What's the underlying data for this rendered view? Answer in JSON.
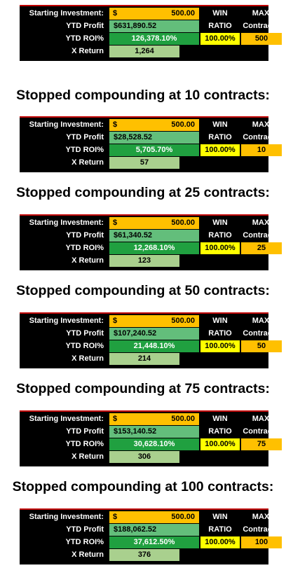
{
  "labels": {
    "starting_investment": "Starting Investment:",
    "ytd_profit": "YTD Profit",
    "ytd_roi": "YTD ROI%",
    "x_return": "X Return",
    "win": "WIN",
    "ratio": "RATIO",
    "max": "MAX",
    "contracts": "Contracts",
    "dollar": "$"
  },
  "tables": [
    {
      "heading": "",
      "investment": "500.00",
      "profit": "$631,890.52",
      "roi": "126,378.10%",
      "x_return": "1,264",
      "win_ratio": "100.00%",
      "max_contracts": "500"
    },
    {
      "heading": "Stopped compounding at 10 contracts:",
      "investment": "500.00",
      "profit": "$28,528.52",
      "roi": "5,705.70%",
      "x_return": "57",
      "win_ratio": "100.00%",
      "max_contracts": "10"
    },
    {
      "heading": "Stopped compounding at 25 contracts:",
      "investment": "500.00",
      "profit": "$61,340.52",
      "roi": "12,268.10%",
      "x_return": "123",
      "win_ratio": "100.00%",
      "max_contracts": "25"
    },
    {
      "heading": "Stopped compounding at 50 contracts:",
      "investment": "500.00",
      "profit": "$107,240.52",
      "roi": "21,448.10%",
      "x_return": "214",
      "win_ratio": "100.00%",
      "max_contracts": "50"
    },
    {
      "heading": "Stopped compounding at 75 contracts:",
      "investment": "500.00",
      "profit": "$153,140.52",
      "roi": "30,628.10%",
      "x_return": "306",
      "win_ratio": "100.00%",
      "max_contracts": "75"
    },
    {
      "heading": "Stopped compounding at 100 contracts:",
      "investment": "500.00",
      "profit": "$188,062.52",
      "roi": "37,612.50%",
      "x_return": "376",
      "win_ratio": "100.00%",
      "max_contracts": "100"
    }
  ]
}
